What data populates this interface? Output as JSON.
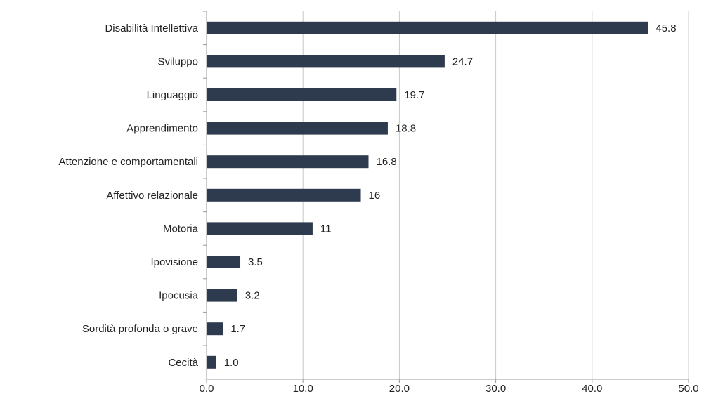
{
  "chart_data": {
    "type": "bar",
    "orientation": "horizontal",
    "categories": [
      "Disabilità Intellettiva",
      "Sviluppo",
      "Linguaggio",
      "Apprendimento",
      "Attenzione e comportamentali",
      "Affettivo relazionale",
      "Motoria",
      "Ipovisione",
      "Ipocusia",
      "Sordità profonda o grave",
      "Cecità"
    ],
    "values": [
      45.8,
      24.7,
      19.7,
      18.8,
      16.8,
      16,
      11,
      3.5,
      3.2,
      1.7,
      1.0
    ],
    "value_labels": [
      "45.8",
      "24.7",
      "19.7",
      "18.8",
      "16.8",
      "16",
      "11",
      "3.5",
      "3.2",
      "1.7",
      "1.0"
    ],
    "x_ticks": [
      "0.0",
      "10.0",
      "20.0",
      "30.0",
      "40.0",
      "50.0"
    ],
    "xlim": [
      0,
      50
    ],
    "grid": "vertical",
    "legend": "none",
    "title": "",
    "xlabel": "",
    "ylabel": "",
    "colors": {
      "bar": "#2e3a4e",
      "grid": "#c8c8c8",
      "axis": "#9a9a9a",
      "text": "#222222"
    }
  }
}
